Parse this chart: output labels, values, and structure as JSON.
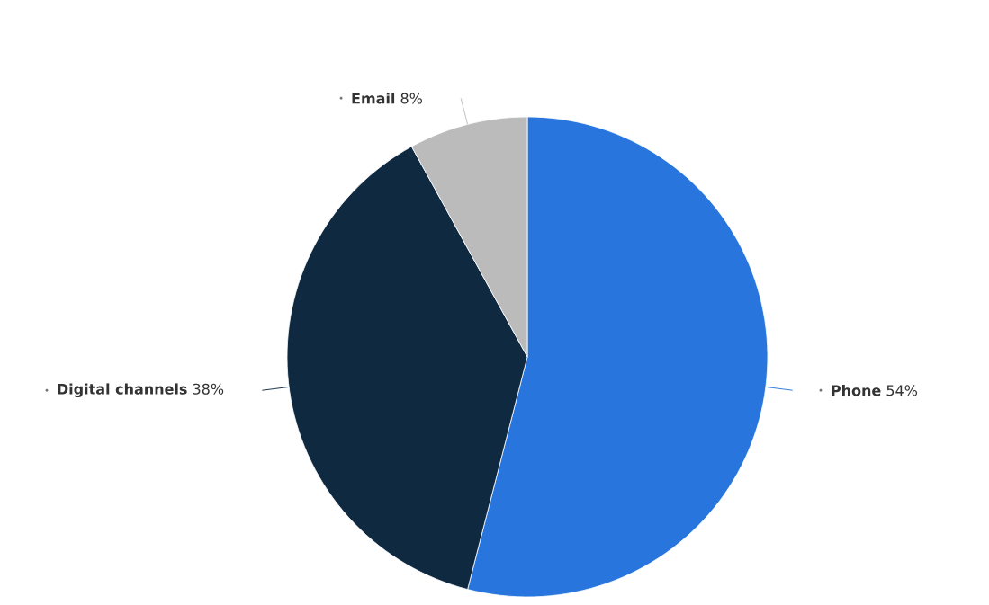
{
  "chart_data": {
    "type": "pie",
    "categories": [
      "Phone",
      "Digital channels",
      "Email"
    ],
    "values": [
      54,
      38,
      8
    ],
    "value_labels": [
      "54%",
      "38%",
      "8%"
    ],
    "colors": [
      "#2876dd",
      "#0f2a40",
      "#bbbbbb"
    ]
  }
}
